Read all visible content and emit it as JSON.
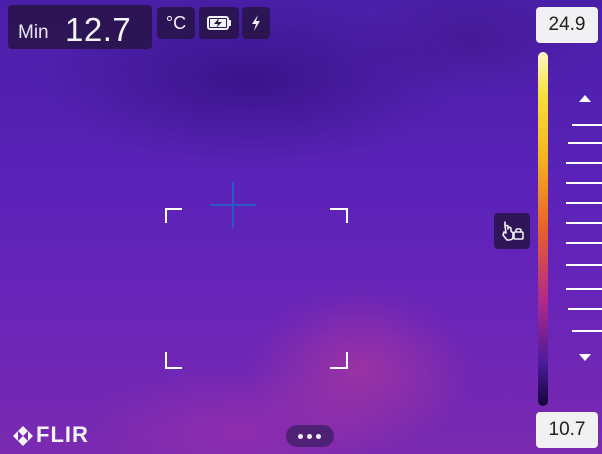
{
  "measurement": {
    "label": "Min",
    "value": "12.7",
    "unit": "°C"
  },
  "status": {
    "battery_icon": "battery-charging-icon",
    "power_icon": "lightning-bolt-icon"
  },
  "scale": {
    "max": "24.9",
    "min": "10.7",
    "palette": "iron"
  },
  "controls": {
    "lock_icon": "hand-lock-icon",
    "more_icon": "more-dots-icon"
  },
  "brand": {
    "logo_text": "FLIR"
  },
  "colors": {
    "background": "#5a22b8",
    "overlay": "#281446",
    "scale_box": "#f1f1f4",
    "crosshair": "#2a58c8"
  }
}
